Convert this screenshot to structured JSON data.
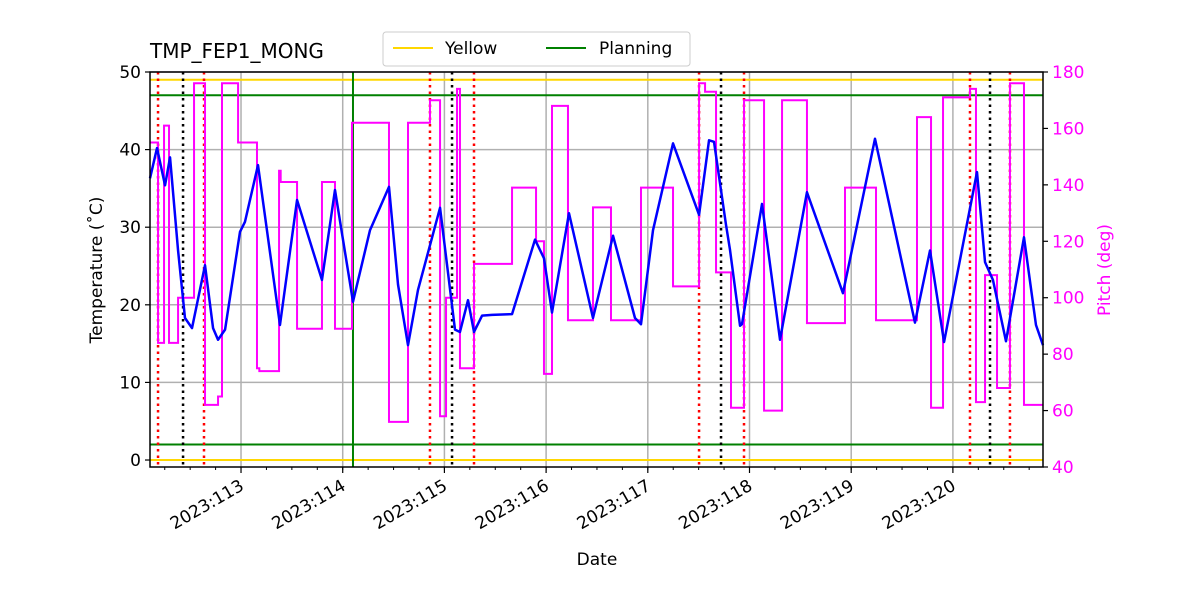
{
  "chart_data": {
    "type": "line",
    "title": "TMP_FEP1_MONG",
    "xlabel": "Date",
    "ylabel": "Temperature ($^\\circ$C)",
    "ylabel_display": "Temperature (˚C)",
    "y2label": "Pitch (deg)",
    "xlim": [
      112.105,
      120.886
    ],
    "ylim": [
      -0.9,
      50
    ],
    "y2lim": [
      40,
      180
    ],
    "xticks": [
      113,
      114,
      115,
      116,
      117,
      118,
      119,
      120
    ],
    "xtick_labels": [
      "2023:113",
      "2023:114",
      "2023:115",
      "2023:116",
      "2023:117",
      "2023:118",
      "2023:119",
      "2023:120"
    ],
    "yticks": [
      0,
      10,
      20,
      30,
      40,
      50
    ],
    "ytick_labels": [
      "0",
      "10",
      "20",
      "30",
      "40",
      "50"
    ],
    "y2ticks": [
      40,
      60,
      80,
      100,
      120,
      140,
      160,
      180
    ],
    "y2tick_labels": [
      "40",
      "60",
      "80",
      "100",
      "120",
      "140",
      "160",
      "180"
    ],
    "grid": true,
    "legend": {
      "placement": "top-center",
      "entries": [
        {
          "label": "Yellow",
          "color": "#ffd700"
        },
        {
          "label": "Planning",
          "color": "#008000"
        }
      ]
    },
    "limits": {
      "yellow": [
        0,
        49
      ],
      "planning": [
        2,
        47
      ]
    },
    "colors": {
      "temperature": "#0000ff",
      "pitch": "#ff00ff",
      "yellow": "#ffd700",
      "planning": "#008000",
      "red_marks": "#ff0000",
      "black_marks": "#000000",
      "grid": "#b0b0b0"
    },
    "vlines_green": [
      114.101
    ],
    "vlines_red_dotted": [
      112.184,
      112.636,
      114.858,
      115.291,
      117.504,
      117.946,
      120.168,
      120.561
    ],
    "vlines_black_dotted": [
      112.43,
      115.075,
      117.72,
      120.365
    ],
    "series": [
      {
        "axis": "left",
        "style": "line",
        "points": [
          [
            112.105,
            36.3
          ],
          [
            112.174,
            40.2
          ],
          [
            112.253,
            35.4
          ],
          [
            112.302,
            39
          ],
          [
            112.381,
            27
          ],
          [
            112.449,
            18.3
          ],
          [
            112.518,
            17
          ],
          [
            112.646,
            25.1
          ],
          [
            112.725,
            17
          ],
          [
            112.774,
            15.5
          ],
          [
            112.843,
            16.8
          ],
          [
            112.99,
            29.4
          ],
          [
            113.039,
            30.7
          ],
          [
            113.167,
            38
          ],
          [
            113.383,
            17.4
          ],
          [
            113.551,
            33.5
          ],
          [
            113.796,
            23.2
          ],
          [
            113.924,
            34.8
          ],
          [
            114.101,
            20.4
          ],
          [
            114.268,
            29.6
          ],
          [
            114.455,
            35.2
          ],
          [
            114.544,
            22.6
          ],
          [
            114.642,
            14.8
          ],
          [
            114.74,
            21.9
          ],
          [
            114.957,
            32.5
          ],
          [
            115.104,
            16.8
          ],
          [
            115.153,
            16.5
          ],
          [
            115.232,
            20.6
          ],
          [
            115.291,
            16.5
          ],
          [
            115.37,
            18.6
          ],
          [
            115.468,
            18.7
          ],
          [
            115.665,
            18.8
          ],
          [
            115.891,
            28.4
          ],
          [
            115.979,
            26
          ],
          [
            116.058,
            19
          ],
          [
            116.225,
            31.8
          ],
          [
            116.461,
            18.3
          ],
          [
            116.658,
            28.9
          ],
          [
            116.874,
            18.3
          ],
          [
            116.933,
            17.5
          ],
          [
            117.051,
            29.6
          ],
          [
            117.248,
            40.8
          ],
          [
            117.504,
            31.6
          ],
          [
            117.602,
            41.2
          ],
          [
            117.651,
            41
          ],
          [
            117.769,
            30.3
          ],
          [
            117.808,
            27.1
          ],
          [
            117.907,
            17.3
          ],
          [
            117.926,
            17.5
          ],
          [
            118.123,
            33
          ],
          [
            118.3,
            15.5
          ],
          [
            118.565,
            34.5
          ],
          [
            118.919,
            21.5
          ],
          [
            119.234,
            41.4
          ],
          [
            119.627,
            17.7
          ],
          [
            119.775,
            27
          ],
          [
            119.913,
            15.2
          ],
          [
            120.237,
            37.1
          ],
          [
            120.316,
            25.5
          ],
          [
            120.394,
            23.2
          ],
          [
            120.522,
            15.3
          ],
          [
            120.699,
            28.7
          ],
          [
            120.817,
            17.4
          ],
          [
            120.886,
            14.8
          ]
        ]
      },
      {
        "axis": "right",
        "style": "steps-post",
        "end": 120.886,
        "points": [
          [
            112.105,
            155
          ],
          [
            112.184,
            84
          ],
          [
            112.243,
            161
          ],
          [
            112.292,
            84
          ],
          [
            112.381,
            100
          ],
          [
            112.538,
            176
          ],
          [
            112.646,
            62
          ],
          [
            112.774,
            65
          ],
          [
            112.813,
            176
          ],
          [
            112.971,
            155
          ],
          [
            113.157,
            75
          ],
          [
            113.18,
            74
          ],
          [
            113.374,
            145
          ],
          [
            113.39,
            141
          ],
          [
            113.551,
            89
          ],
          [
            113.796,
            141
          ],
          [
            113.924,
            89
          ],
          [
            114.091,
            162
          ],
          [
            114.455,
            56
          ],
          [
            114.642,
            162
          ],
          [
            114.858,
            170
          ],
          [
            114.957,
            58
          ],
          [
            115.016,
            100
          ],
          [
            115.124,
            174
          ],
          [
            115.153,
            75
          ],
          [
            115.291,
            112
          ],
          [
            115.665,
            139
          ],
          [
            115.901,
            120
          ],
          [
            115.979,
            73
          ],
          [
            116.058,
            168
          ],
          [
            116.215,
            92
          ],
          [
            116.461,
            132
          ],
          [
            116.638,
            92
          ],
          [
            116.933,
            139
          ],
          [
            117.248,
            104
          ],
          [
            117.504,
            176
          ],
          [
            117.563,
            173
          ],
          [
            117.671,
            109
          ],
          [
            117.818,
            61
          ],
          [
            117.946,
            170
          ],
          [
            118.143,
            60
          ],
          [
            118.32,
            170
          ],
          [
            118.565,
            91
          ],
          [
            118.939,
            139
          ],
          [
            119.244,
            92
          ],
          [
            119.647,
            164
          ],
          [
            119.785,
            61
          ],
          [
            119.903,
            171
          ],
          [
            120.168,
            174
          ],
          [
            120.227,
            63
          ],
          [
            120.316,
            108
          ],
          [
            120.434,
            68
          ],
          [
            120.561,
            176
          ],
          [
            120.699,
            62
          ]
        ]
      }
    ]
  }
}
